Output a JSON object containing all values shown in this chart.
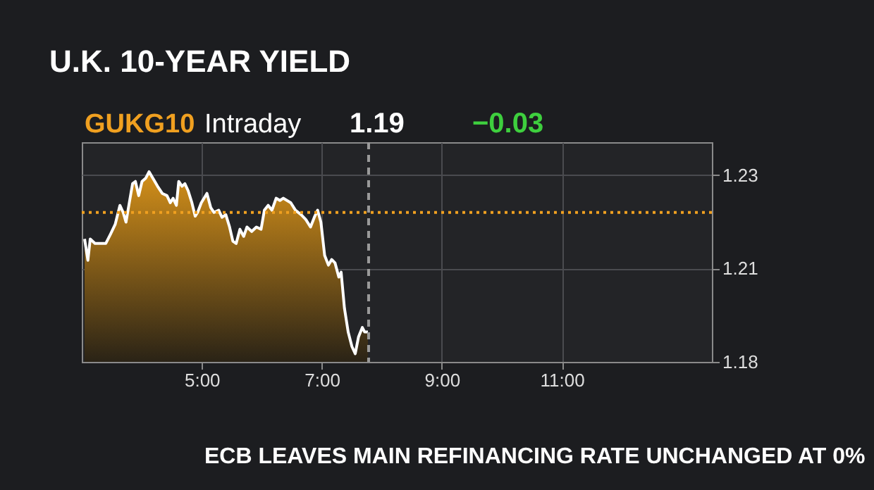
{
  "chart_data": {
    "type": "area",
    "title": "U.K. 10-YEAR YIELD",
    "annotations": [
      "GUKG10",
      "Intraday",
      "1.19",
      "−0.03",
      "ECB LEAVES MAIN REFINANCING RATE UNCHANGED AT 0%"
    ],
    "xlim": [
      3,
      13.5
    ],
    "ylim": [
      1.1825,
      1.2413
    ],
    "xticks": [
      {
        "value": 5,
        "label": "5:00"
      },
      {
        "value": 7,
        "label": "7:00"
      },
      {
        "value": 9,
        "label": "9:00"
      },
      {
        "value": 11,
        "label": "11:00"
      }
    ],
    "yticks": [
      {
        "value": 1.2325,
        "label": "1.23"
      },
      {
        "value": 1.2075,
        "label": "1.21"
      },
      {
        "value": 1.1825,
        "label": "1.18"
      }
    ],
    "grid": true,
    "ref_lines": [
      {
        "axis": "y",
        "value": 1.2225,
        "color": "#f0a020",
        "line_style": "dotted"
      },
      {
        "axis": "x",
        "value": 7.78,
        "color": "#9a9a9a",
        "line_style": "dashed"
      }
    ],
    "series": [
      {
        "color": "#d4901a",
        "x": [
          3.047,
          3.102,
          3.141,
          3.22,
          3.4,
          3.479,
          3.557,
          3.636,
          3.69,
          3.737,
          3.792,
          3.847,
          3.894,
          3.949,
          4.004,
          4.067,
          4.122,
          4.184,
          4.263,
          4.341,
          4.42,
          4.475,
          4.522,
          4.577,
          4.616,
          4.671,
          4.718,
          4.773,
          4.835,
          4.89,
          4.93,
          4.992,
          5.086,
          5.149,
          5.204,
          5.282,
          5.337,
          5.4,
          5.463,
          5.518,
          5.573,
          5.635,
          5.698,
          5.753,
          5.832,
          5.91,
          5.988,
          6.043,
          6.106,
          6.169,
          6.239,
          6.302,
          6.357,
          6.42,
          6.483,
          6.561,
          6.655,
          6.734,
          6.812,
          6.875,
          6.93,
          6.985,
          7.047,
          7.11,
          7.165,
          7.22,
          7.283,
          7.322,
          7.377,
          7.439,
          7.502,
          7.557,
          7.612,
          7.675,
          7.714,
          7.769
        ],
        "values": [
          1.2154,
          1.2097,
          1.2154,
          1.2142,
          1.2142,
          1.2167,
          1.2193,
          1.2244,
          1.2225,
          1.2199,
          1.2251,
          1.2302,
          1.2308,
          1.227,
          1.2308,
          1.2317,
          1.2334,
          1.2317,
          1.2295,
          1.2276,
          1.227,
          1.2251,
          1.2263,
          1.2244,
          1.2308,
          1.2295,
          1.2302,
          1.2283,
          1.2251,
          1.2215,
          1.2225,
          1.2251,
          1.2276,
          1.2238,
          1.2225,
          1.2231,
          1.2212,
          1.2219,
          1.2186,
          1.2148,
          1.2142,
          1.218,
          1.2161,
          1.2186,
          1.2174,
          1.2186,
          1.218,
          1.2231,
          1.2244,
          1.2231,
          1.2263,
          1.2257,
          1.2263,
          1.2257,
          1.2251,
          1.2231,
          1.2219,
          1.2206,
          1.2186,
          1.2212,
          1.2231,
          1.2199,
          1.211,
          1.2084,
          1.2099,
          1.209,
          1.2052,
          1.2065,
          1.1969,
          1.1905,
          1.1866,
          1.1847,
          1.1892,
          1.1917,
          1.1905,
          1.1905
        ]
      }
    ]
  }
}
